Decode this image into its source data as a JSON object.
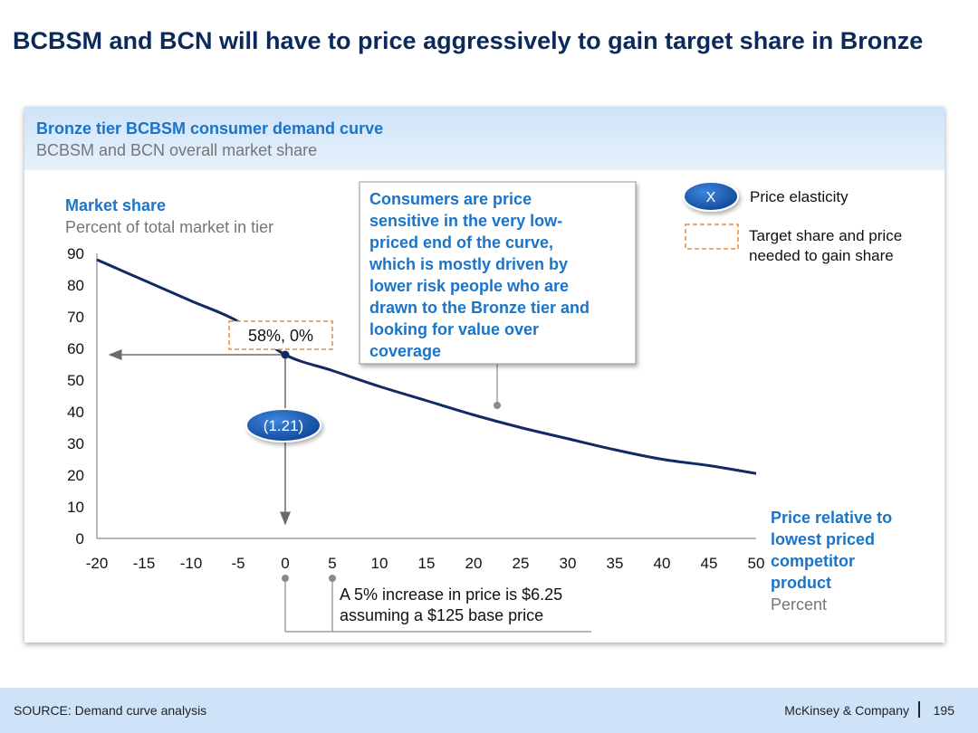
{
  "title": "BCBSM and BCN will have to price aggressively to gain target share in Bronze",
  "panel": {
    "title": "Bronze tier BCBSM consumer demand curve",
    "subtitle": "BCBSM and BCN overall market share"
  },
  "chart_data": {
    "type": "line",
    "ylabel": "Market share",
    "ylabel_sub": "Percent of total market in tier",
    "xlabel_lines": [
      "Price relative to",
      "lowest priced",
      "competitor",
      "product"
    ],
    "xlabel_sub": "Percent",
    "xlim": [
      -20,
      50
    ],
    "ylim": [
      0,
      90
    ],
    "x_ticks": [
      -20,
      -15,
      -10,
      -5,
      0,
      5,
      10,
      15,
      20,
      25,
      30,
      35,
      40,
      45,
      50
    ],
    "y_ticks": [
      0,
      10,
      20,
      30,
      40,
      50,
      60,
      70,
      80,
      90
    ],
    "series": [
      {
        "name": "Demand curve",
        "x": [
          -20,
          -15,
          -10,
          -5,
          0,
          5,
          10,
          15,
          20,
          25,
          30,
          35,
          40,
          45,
          50
        ],
        "y": [
          88,
          81.5,
          75,
          68.5,
          58,
          53,
          48,
          43.5,
          39,
          35,
          31.5,
          28,
          25,
          23,
          20.5
        ]
      }
    ],
    "marked_point": {
      "x": 0,
      "y": 58,
      "label": "58%, 0%"
    },
    "elasticity_label": "(1.21)",
    "callout_text": "Consumers are price sensitive in the very low-priced end of the curve, which is mostly driven by lower risk people who are drawn to the Bronze tier and looking for value over coverage",
    "callout_lines": [
      "Consumers are price",
      "sensitive in the very low-",
      "priced end of the curve,",
      "which is mostly driven by",
      "lower risk people who are",
      "drawn to the Bronze tier and",
      "looking for value over",
      "coverage"
    ],
    "note_lines": [
      "A 5% increase in price is $6.25",
      "assuming a $125 base price"
    ],
    "legend": [
      {
        "symbol": "X",
        "label": "Price elasticity"
      },
      {
        "symbol": "dashed-box",
        "label_lines": [
          "Target share and price",
          "needed to gain share"
        ]
      }
    ]
  },
  "colors": {
    "navy": "#0b2a5b",
    "accent": "#1a74c8",
    "curve": "#102a63",
    "oval": "#1354a6",
    "dashed": "#e88a3a",
    "gray": "#767676"
  },
  "footer": {
    "source": "SOURCE: Demand curve analysis",
    "brand": "McKinsey & Company",
    "page": "195"
  }
}
